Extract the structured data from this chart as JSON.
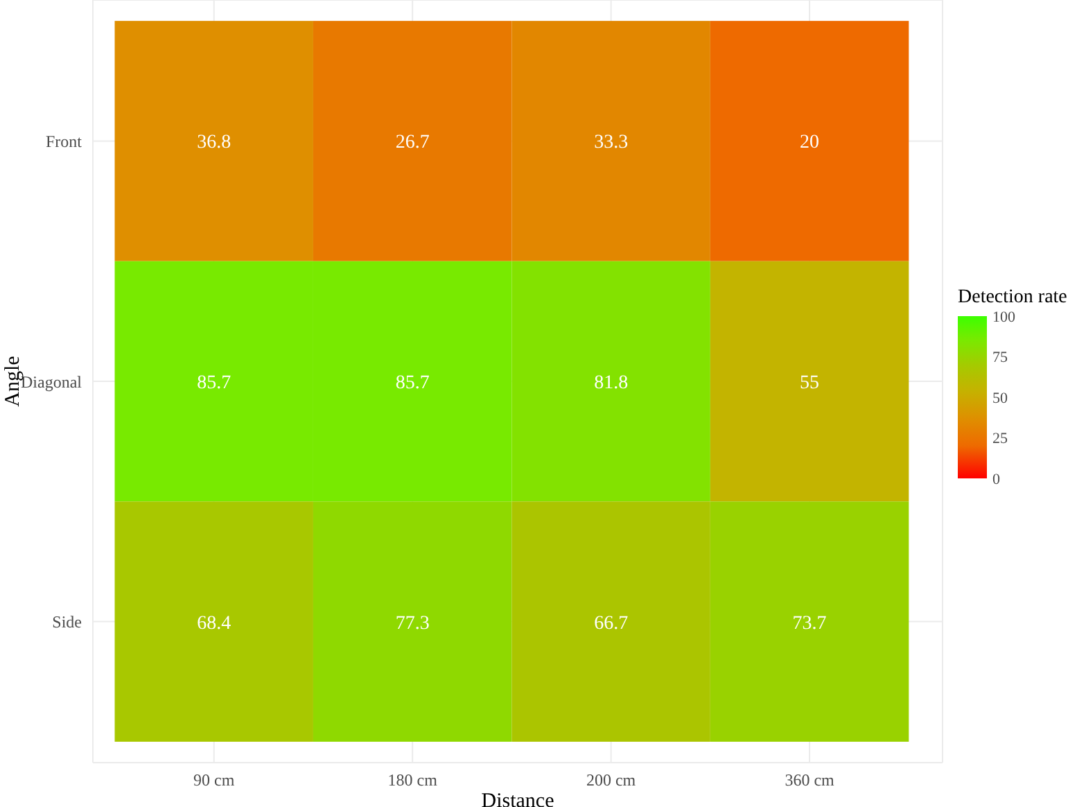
{
  "chart_data": {
    "type": "heatmap",
    "xlabel": "Distance",
    "ylabel": "Angle",
    "clabel": "Detection rate",
    "categories": [
      "90 cm",
      "180 cm",
      "200 cm",
      "360 cm"
    ],
    "y_categories": [
      "Front",
      "Diagonal",
      "Side"
    ],
    "cells": [
      [
        36.8,
        26.7,
        33.3,
        20
      ],
      [
        85.7,
        85.7,
        81.8,
        55
      ],
      [
        68.4,
        77.3,
        66.7,
        73.7
      ]
    ],
    "clim": [
      0,
      100
    ],
    "cticks": [
      0,
      25,
      50,
      75,
      100
    ],
    "data_labels": true,
    "grid": true
  }
}
